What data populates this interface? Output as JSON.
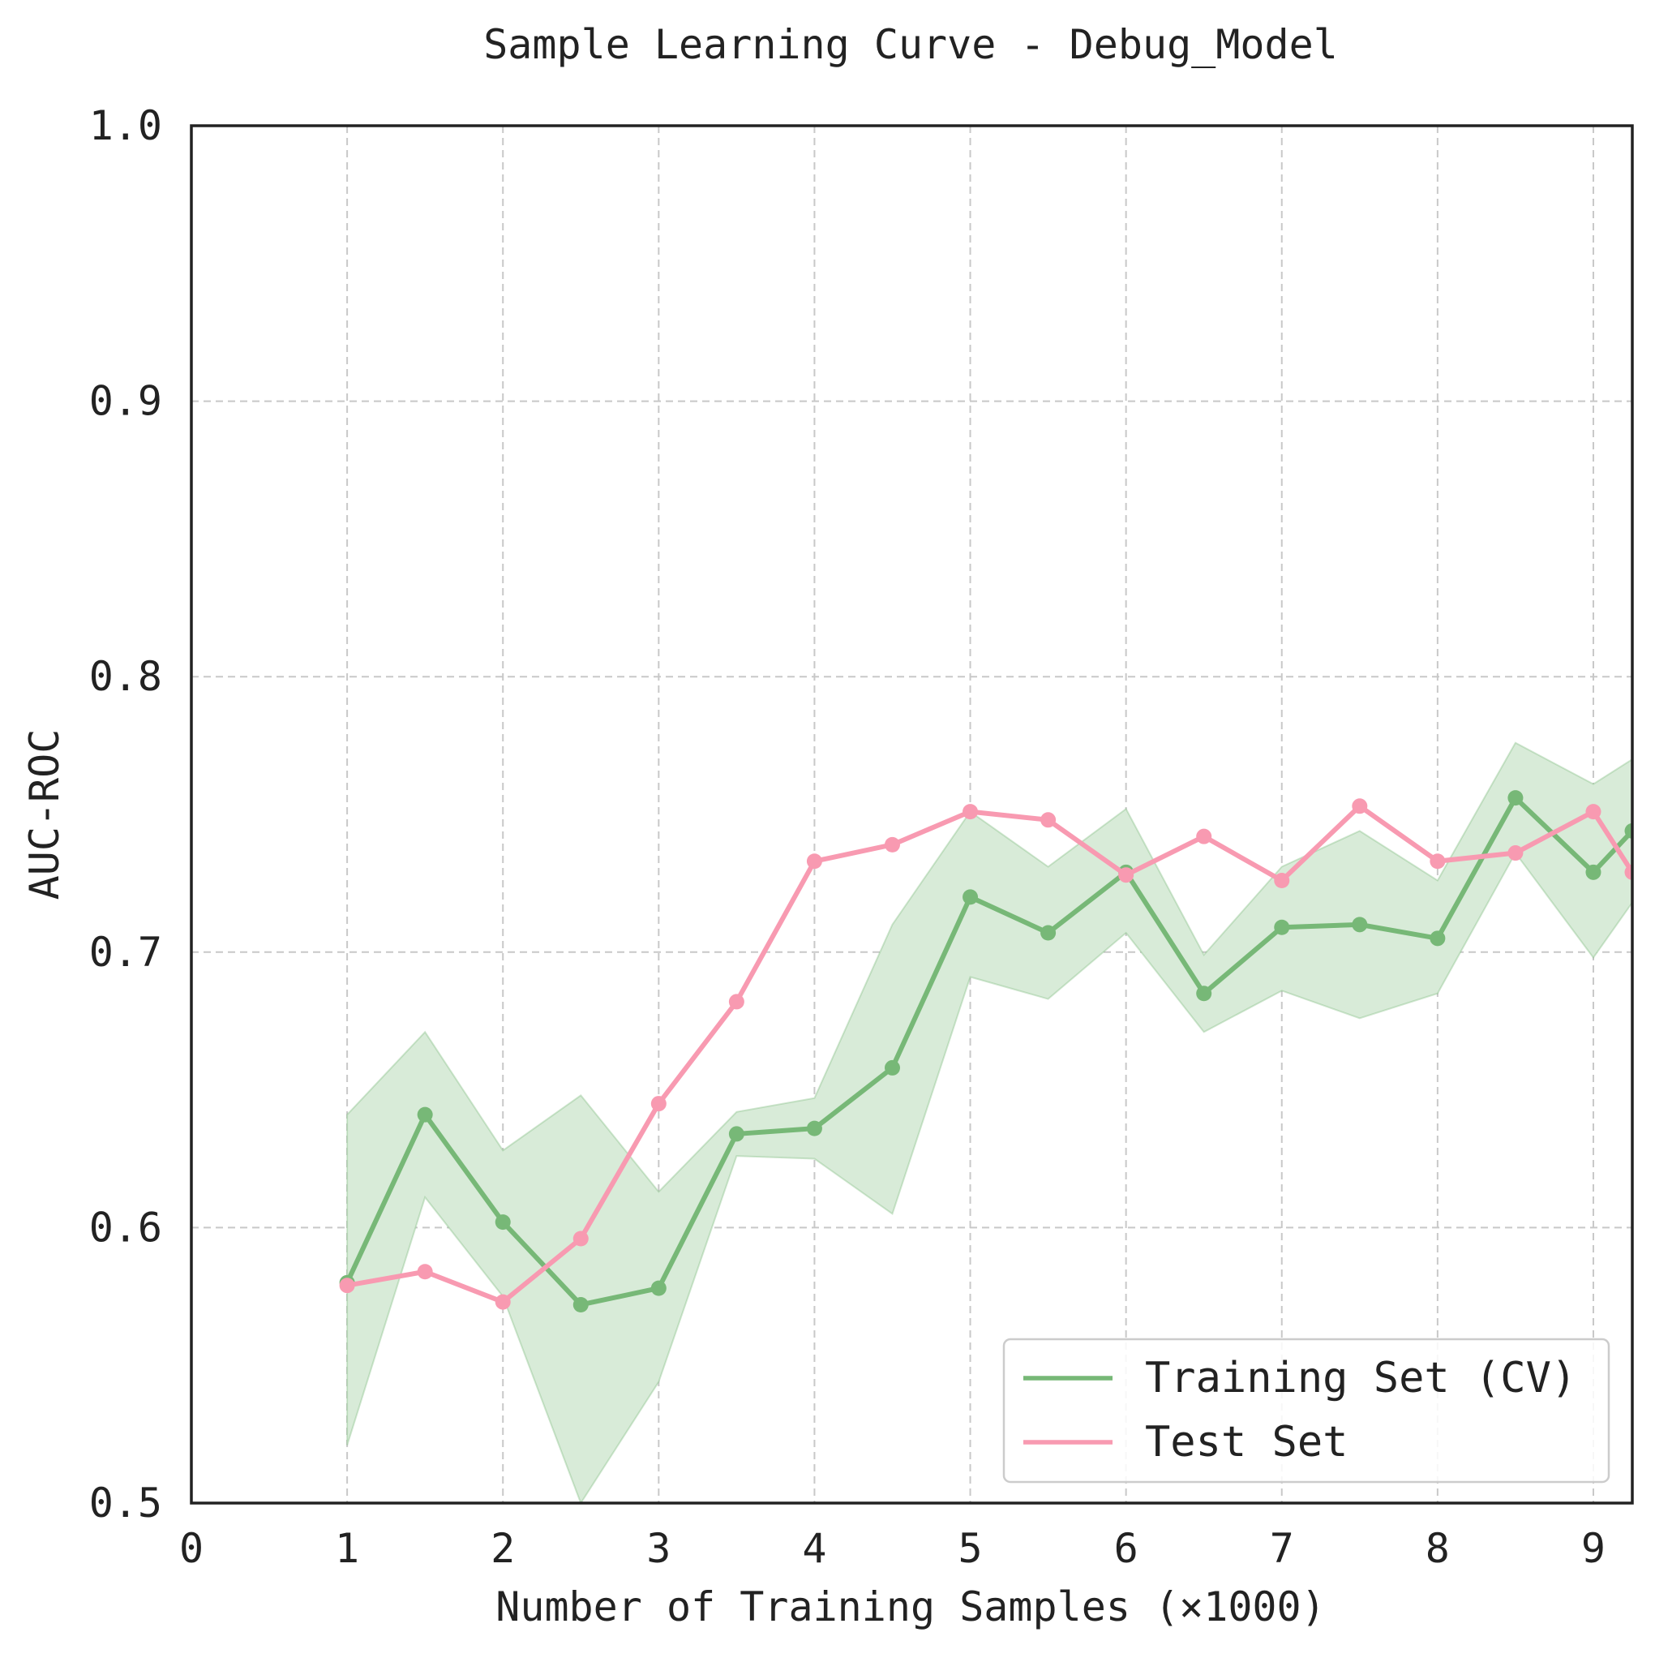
{
  "chart_data": {
    "type": "line",
    "title": "Sample Learning Curve - Debug_Model",
    "xlabel": "Number of Training Samples (×1000)",
    "ylabel": "AUC-ROC",
    "xlim": [
      0,
      9.25
    ],
    "ylim": [
      0.5,
      1.0
    ],
    "xticks": [
      0,
      1,
      2,
      3,
      4,
      5,
      6,
      7,
      8,
      9
    ],
    "xtick_labels": [
      "0",
      "1",
      "2",
      "3",
      "4",
      "5",
      "6",
      "7",
      "8",
      "9"
    ],
    "yticks": [
      0.5,
      0.6,
      0.7,
      0.8,
      0.9,
      1.0
    ],
    "ytick_labels": [
      "0.5",
      "0.6",
      "0.7",
      "0.8",
      "0.9",
      "1.0"
    ],
    "grid": true,
    "legend_position": "bottom-right",
    "x": [
      1,
      1.5,
      2,
      2.5,
      3,
      3.5,
      4,
      4.5,
      5,
      5.5,
      6,
      6.5,
      7,
      7.5,
      8,
      8.5,
      9,
      9.25
    ],
    "series": [
      {
        "name": "Training Set (CV)",
        "color": "#77b877",
        "values": [
          0.58,
          0.641,
          0.602,
          0.572,
          0.578,
          0.634,
          0.636,
          0.658,
          0.72,
          0.707,
          0.729,
          0.685,
          0.709,
          0.71,
          0.705,
          0.756,
          0.729,
          0.744
        ],
        "band_lower": [
          0.521,
          0.611,
          0.575,
          0.5,
          0.544,
          0.626,
          0.625,
          0.605,
          0.691,
          0.683,
          0.707,
          0.671,
          0.686,
          0.676,
          0.685,
          0.736,
          0.698,
          0.718
        ],
        "band_upper": [
          0.641,
          0.671,
          0.628,
          0.648,
          0.613,
          0.642,
          0.647,
          0.71,
          0.751,
          0.731,
          0.752,
          0.699,
          0.731,
          0.744,
          0.726,
          0.776,
          0.761,
          0.77
        ],
        "band_color": "#d8ebd8"
      },
      {
        "name": "Test Set",
        "color": "#f89ab1",
        "values": [
          0.579,
          0.584,
          0.573,
          0.596,
          0.645,
          0.682,
          0.733,
          0.739,
          0.751,
          0.748,
          0.728,
          0.742,
          0.726,
          0.753,
          0.733,
          0.736,
          0.751,
          0.729
        ]
      }
    ]
  }
}
